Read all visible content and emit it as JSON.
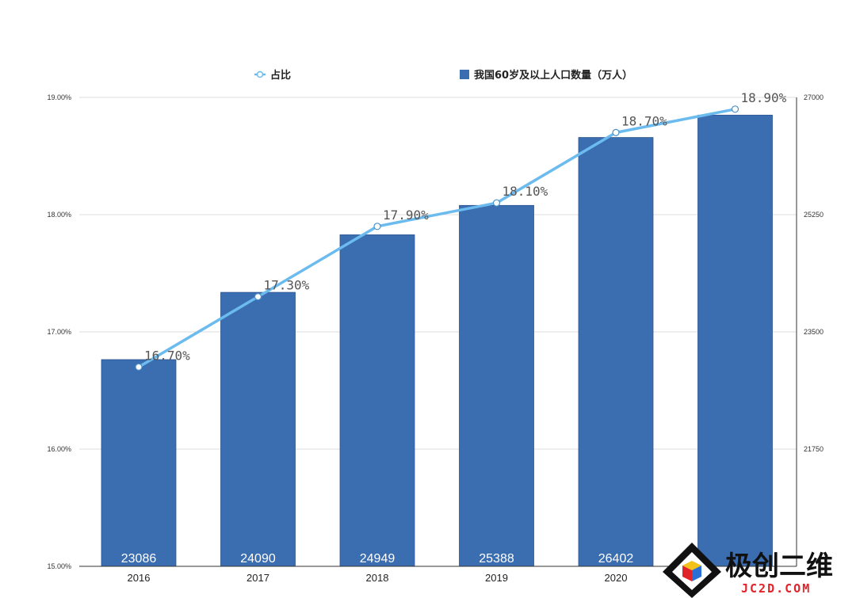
{
  "chart_data": {
    "type": "bar",
    "categories": [
      "2016",
      "2017",
      "2018",
      "2019",
      "2020",
      ""
    ],
    "series": [
      {
        "name": "我国60岁及以上人口数量（万人）",
        "chart_type": "bar",
        "axis": "right",
        "values": [
          23086,
          24090,
          24949,
          25388,
          26402,
          26736
        ],
        "data_labels": [
          "23086",
          "24090",
          "24949",
          "25388",
          "26402",
          ""
        ],
        "color": "#3b6db1"
      },
      {
        "name": "占比",
        "chart_type": "line",
        "axis": "left",
        "values": [
          16.7,
          17.3,
          17.9,
          18.1,
          18.7,
          18.9
        ],
        "data_labels": [
          "16.70%",
          "17.30%",
          "17.90%",
          "18.10%",
          "18.70%",
          "18.90%"
        ],
        "color": "#6cbbef"
      }
    ],
    "y_left": {
      "ylim": [
        15,
        19
      ],
      "ticks": [
        "15.00%",
        "16.00%",
        "17.00%",
        "18.00%",
        "19.00%"
      ]
    },
    "y_right": {
      "ylim": [
        20000,
        27000
      ],
      "ticks": [
        "21750",
        "23500",
        "25250",
        "27000"
      ]
    },
    "legend_position": "top",
    "grid": true
  },
  "watermark": {
    "brand_text": "极创二维",
    "sub_text": "JC2D.COM"
  }
}
